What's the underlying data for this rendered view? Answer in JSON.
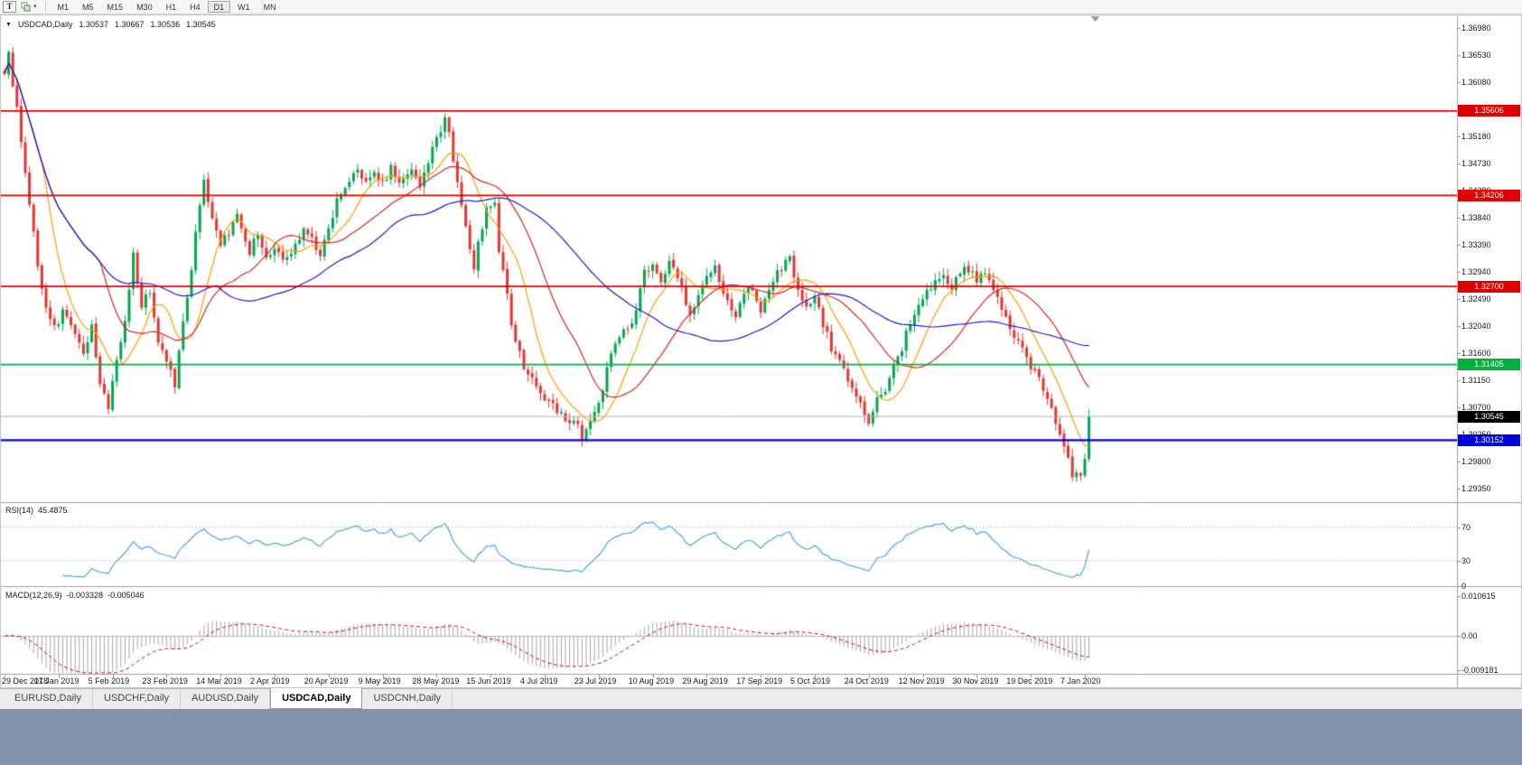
{
  "toolbar": {
    "tool_button": "T",
    "timeframes": [
      "M1",
      "M5",
      "M15",
      "M30",
      "H1",
      "H4",
      "D1",
      "W1",
      "MN"
    ],
    "active_timeframe": "D1"
  },
  "chart": {
    "title": "USDCAD,Daily",
    "quote": {
      "open": "1.30537",
      "high": "1.30667",
      "low": "1.30536",
      "close": "1.30545"
    },
    "y_axis": [
      "1.36980",
      "1.36530",
      "1.36080",
      "1.35630",
      "1.35180",
      "1.34730",
      "1.34280",
      "1.33840",
      "1.33390",
      "1.32940",
      "1.32490",
      "1.32040",
      "1.31600",
      "1.31150",
      "1.30700",
      "1.30250",
      "1.29800",
      "1.29350"
    ],
    "x_axis": [
      "29 Dec 2018",
      "17 Jan 2019",
      "5 Feb 2019",
      "23 Feb 2019",
      "14 Mar 2019",
      "2 Apr 2019",
      "20 Apr 2019",
      "9 May 2019",
      "28 May 2019",
      "15 Jun 2019",
      "4 Jul 2019",
      "23 Jul 2019",
      "10 Aug 2019",
      "29 Aug 2019",
      "17 Sep 2019",
      "5 Oct 2019",
      "24 Oct 2019",
      "12 Nov 2019",
      "30 Nov 2019",
      "19 Dec 2019",
      "7 Jan 2020"
    ],
    "hlines": [
      {
        "price": 1.35606,
        "label": "1.35606",
        "color": "#e00000",
        "width": 1.6
      },
      {
        "price": 1.34206,
        "label": "1.34206",
        "color": "#e00000",
        "width": 1.6
      },
      {
        "price": 1.327,
        "label": "1.32700",
        "color": "#e00000",
        "width": 1.6
      },
      {
        "price": 1.31405,
        "label": "1.31405",
        "color": "#00b140",
        "width": 1.6
      },
      {
        "price": 1.30152,
        "label": "1.30152",
        "color": "#0000e0",
        "width": 2.4
      }
    ],
    "current_price": {
      "value": 1.30545,
      "label": "1.30545",
      "badge_bg": "#000000"
    }
  },
  "rsi": {
    "label": "RSI(14)",
    "value": "45.4875",
    "levels": [
      "70",
      "30",
      "0"
    ],
    "color": "#4da6e0"
  },
  "macd": {
    "label": "MACD(12,26,9)",
    "value_main": "-0.003328",
    "value_signal": "-0.005046",
    "axis": [
      "0.010615",
      "0.00",
      "-0.009181"
    ]
  },
  "tabs": {
    "items": [
      "EURUSD,Daily",
      "USDCHF,Daily",
      "AUDUSD,Daily",
      "USDCAD,Daily",
      "USDCNH,Daily"
    ],
    "active": "USDCAD,Daily"
  },
  "chart_data": {
    "type": "candlestick",
    "symbol": "USDCAD",
    "periodicity": "Daily",
    "bars": 262,
    "y_range": [
      1.2935,
      1.3698
    ],
    "date_range": [
      "29 Dec 2018",
      "7 Jan 2020"
    ],
    "close_path": [
      [
        0,
        1.363
      ],
      [
        1,
        1.3652
      ],
      [
        3,
        1.356
      ],
      [
        6,
        1.341
      ],
      [
        8,
        1.331
      ],
      [
        10,
        1.323
      ],
      [
        12,
        1.32
      ],
      [
        14,
        1.3225
      ],
      [
        16,
        1.32
      ],
      [
        19,
        1.316
      ],
      [
        21,
        1.321
      ],
      [
        23,
        1.31
      ],
      [
        25,
        1.307
      ],
      [
        26,
        1.312
      ],
      [
        28,
        1.318
      ],
      [
        30,
        1.326
      ],
      [
        31,
        1.332
      ],
      [
        33,
        1.324
      ],
      [
        35,
        1.326
      ],
      [
        37,
        1.318
      ],
      [
        39,
        1.314
      ],
      [
        41,
        1.311
      ],
      [
        42,
        1.317
      ],
      [
        45,
        1.33
      ],
      [
        47,
        1.341
      ],
      [
        48,
        1.345
      ],
      [
        50,
        1.338
      ],
      [
        52,
        1.334
      ],
      [
        54,
        1.336
      ],
      [
        56,
        1.339
      ],
      [
        59,
        1.333
      ],
      [
        61,
        1.336
      ],
      [
        63,
        1.331
      ],
      [
        65,
        1.334
      ],
      [
        67,
        1.331
      ],
      [
        69,
        1.333
      ],
      [
        72,
        1.336
      ],
      [
        74,
        1.335
      ],
      [
        76,
        1.332
      ],
      [
        78,
        1.337
      ],
      [
        80,
        1.341
      ],
      [
        82,
        1.344
      ],
      [
        85,
        1.347
      ],
      [
        87,
        1.344
      ],
      [
        89,
        1.346
      ],
      [
        91,
        1.344
      ],
      [
        93,
        1.347
      ],
      [
        95,
        1.344
      ],
      [
        98,
        1.346
      ],
      [
        100,
        1.343
      ],
      [
        102,
        1.348
      ],
      [
        104,
        1.352
      ],
      [
        106,
        1.3545
      ],
      [
        107,
        1.352
      ],
      [
        109,
        1.345
      ],
      [
        111,
        1.337
      ],
      [
        113,
        1.33
      ],
      [
        114,
        1.334
      ],
      [
        116,
        1.34
      ],
      [
        118,
        1.3415
      ],
      [
        119,
        1.333
      ],
      [
        121,
        1.326
      ],
      [
        122,
        1.32
      ],
      [
        125,
        1.314
      ],
      [
        127,
        1.312
      ],
      [
        129,
        1.309
      ],
      [
        131,
        1.308
      ],
      [
        133,
        1.306
      ],
      [
        135,
        1.305
      ],
      [
        138,
        1.3035
      ],
      [
        139,
        1.302
      ],
      [
        141,
        1.305
      ],
      [
        143,
        1.308
      ],
      [
        145,
        1.313
      ],
      [
        147,
        1.318
      ],
      [
        150,
        1.32
      ],
      [
        152,
        1.323
      ],
      [
        154,
        1.329
      ],
      [
        156,
        1.33
      ],
      [
        158,
        1.327
      ],
      [
        160,
        1.331
      ],
      [
        163,
        1.327
      ],
      [
        165,
        1.322
      ],
      [
        167,
        1.326
      ],
      [
        169,
        1.328
      ],
      [
        171,
        1.33
      ],
      [
        173,
        1.326
      ],
      [
        176,
        1.322
      ],
      [
        178,
        1.325
      ],
      [
        180,
        1.327
      ],
      [
        182,
        1.323
      ],
      [
        184,
        1.326
      ],
      [
        186,
        1.329
      ],
      [
        189,
        1.332
      ],
      [
        191,
        1.326
      ],
      [
        193,
        1.323
      ],
      [
        195,
        1.326
      ],
      [
        197,
        1.321
      ],
      [
        199,
        1.317
      ],
      [
        202,
        1.313
      ],
      [
        204,
        1.31
      ],
      [
        206,
        1.307
      ],
      [
        208,
        1.305
      ],
      [
        210,
        1.308
      ],
      [
        212,
        1.31
      ],
      [
        215,
        1.315
      ],
      [
        217,
        1.319
      ],
      [
        219,
        1.322
      ],
      [
        221,
        1.325
      ],
      [
        223,
        1.327
      ],
      [
        225,
        1.329
      ],
      [
        228,
        1.327
      ],
      [
        230,
        1.329
      ],
      [
        232,
        1.33
      ],
      [
        234,
        1.328
      ],
      [
        236,
        1.329
      ],
      [
        238,
        1.326
      ],
      [
        241,
        1.322
      ],
      [
        243,
        1.319
      ],
      [
        245,
        1.317
      ],
      [
        247,
        1.314
      ],
      [
        249,
        1.312
      ],
      [
        251,
        1.308
      ],
      [
        254,
        1.303
      ],
      [
        256,
        1.298
      ],
      [
        257,
        1.296
      ],
      [
        259,
        1.2955
      ],
      [
        260,
        1.299
      ],
      [
        261,
        1.3055
      ]
    ],
    "moving_averages": [
      {
        "period": 10,
        "color": "#ff9d00"
      },
      {
        "period": 24,
        "color": "#d92626"
      },
      {
        "period": 52,
        "color": "#1b1bd0"
      }
    ],
    "rsi_period": 14,
    "macd_params": [
      12,
      26,
      9
    ],
    "colors": {
      "up": "#00a651",
      "down": "#e5352f",
      "bid_line": "#b0b0b0",
      "rsi_line": "#4da6e0",
      "rsi_levels": "#bfbfbf",
      "macd_hist": "#a6a6a6",
      "macd_signal": "#cc1111",
      "separator": "#a0a0a0",
      "axis_text": "#1a1a1a"
    }
  }
}
